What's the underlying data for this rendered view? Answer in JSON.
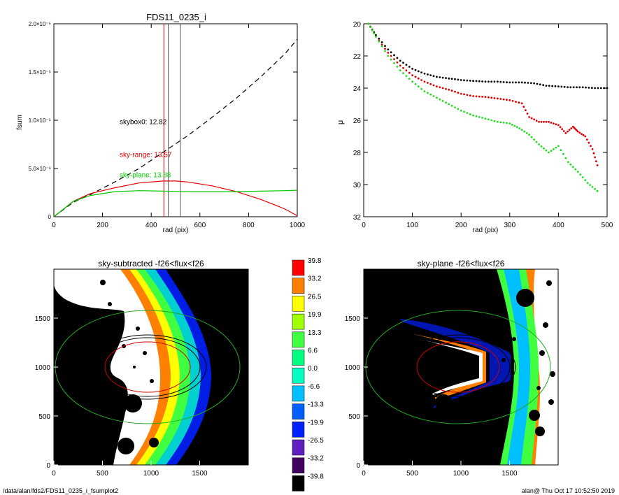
{
  "footer": {
    "left": "/data/alan/fds2/FDS11_0235_i_fsumplot2",
    "right": "alan@  Thu Oct 17 10:52:50 2019"
  },
  "chart_data": [
    {
      "type": "line",
      "title": "FDS11_0235_i",
      "xlabel": "rad (pix)",
      "ylabel": "fsum",
      "xlim": [
        0,
        1000
      ],
      "ylim": [
        0,
        2e-05
      ],
      "xticks": [
        "0",
        "200",
        "400",
        "600",
        "800",
        "1000"
      ],
      "yticks": [
        "0",
        "5.0×10⁻⁶",
        "1.0×10⁻⁵",
        "1.5×10⁻⁵",
        "2.0×10⁻⁵"
      ],
      "yticks_value": [
        0,
        5e-06,
        1e-05,
        1.5e-05,
        2e-05
      ],
      "series": [
        {
          "name": "skybox0",
          "color": "#000000",
          "dashed": true,
          "x": [
            0,
            80,
            150,
            250,
            350,
            450,
            550,
            650,
            750,
            850,
            950,
            1000
          ],
          "y": [
            0,
            1.5e-06,
            2.3e-06,
            3.6e-06,
            5e-06,
            6.7e-06,
            8.4e-06,
            1.03e-05,
            1.23e-05,
            1.45e-05,
            1.69e-05,
            1.84e-05
          ]
        },
        {
          "name": "sky-range",
          "color": "#e00000",
          "x": [
            0,
            40,
            80,
            150,
            250,
            350,
            450,
            500,
            550,
            650,
            750,
            850,
            950,
            1000
          ],
          "y": [
            0,
            8e-07,
            1.6e-06,
            2.4e-06,
            3e-06,
            3.5e-06,
            3.7e-06,
            3.7e-06,
            3.6e-06,
            3.2e-06,
            2.6e-06,
            1.8e-06,
            8e-07,
            1e-07
          ]
        },
        {
          "name": "sky-plane",
          "color": "#00c800",
          "x": [
            0,
            40,
            80,
            150,
            250,
            350,
            450,
            550,
            650,
            750,
            850,
            950,
            1000
          ],
          "y": [
            0,
            8e-07,
            1.6e-06,
            2.2e-06,
            2.6e-06,
            2.7e-06,
            2.65e-06,
            2.6e-06,
            2.6e-06,
            2.6e-06,
            2.65e-06,
            2.7e-06,
            2.75e-06
          ]
        }
      ],
      "vlines": [
        {
          "x": 452,
          "color": "#e00000"
        },
        {
          "x": 470,
          "color": "#555555"
        },
        {
          "x": 520,
          "color": "#555555"
        }
      ],
      "annotations": [
        {
          "text": "skybox0: 12.82",
          "color": "#000000",
          "x": 270,
          "y": 9.6e-06
        },
        {
          "text": "sky-range: 13.57",
          "color": "#e00000",
          "x": 270,
          "y": 6.2e-06
        },
        {
          "text": "sky-plane: 13.88",
          "color": "#00c800",
          "x": 270,
          "y": 4.1e-06
        }
      ]
    },
    {
      "type": "scatter",
      "title": "",
      "xlabel": "rad (pix)",
      "ylabel": "μ",
      "xlim": [
        0,
        500
      ],
      "ylim": [
        32,
        20
      ],
      "xticks": [
        "0",
        "100",
        "200",
        "300",
        "400",
        "500"
      ],
      "yticks": [
        "20",
        "22",
        "24",
        "26",
        "28",
        "30",
        "32"
      ],
      "series": [
        {
          "name": "",
          "color": "#000000",
          "x": [
            10,
            25,
            50,
            75,
            100,
            125,
            150,
            175,
            200,
            225,
            250,
            275,
            300,
            325,
            350,
            375,
            400,
            425,
            450,
            475,
            500
          ],
          "y": [
            20.0,
            20.7,
            21.6,
            22.3,
            22.8,
            23.1,
            23.3,
            23.4,
            23.5,
            23.55,
            23.6,
            23.6,
            23.65,
            23.65,
            23.7,
            23.85,
            23.9,
            23.95,
            23.95,
            24.0,
            24.0
          ]
        },
        {
          "name": "",
          "color": "#e00000",
          "x": [
            10,
            25,
            50,
            75,
            100,
            125,
            150,
            175,
            200,
            225,
            250,
            275,
            300,
            325,
            340,
            360,
            380,
            400,
            415,
            430,
            440,
            455,
            470,
            480
          ],
          "y": [
            20.0,
            20.8,
            21.8,
            22.6,
            23.2,
            23.6,
            23.9,
            24.1,
            24.35,
            24.5,
            24.55,
            24.65,
            24.75,
            24.95,
            25.8,
            26.1,
            26.1,
            26.3,
            26.8,
            26.4,
            26.7,
            27.0,
            27.8,
            28.8
          ]
        },
        {
          "name": "",
          "color": "#22dd22",
          "x": [
            10,
            25,
            50,
            75,
            100,
            125,
            150,
            175,
            200,
            225,
            250,
            275,
            300,
            320,
            340,
            360,
            380,
            400,
            420,
            440,
            460,
            480
          ],
          "y": [
            20.0,
            20.8,
            22.0,
            22.9,
            23.6,
            24.2,
            24.6,
            25.0,
            25.4,
            25.7,
            25.9,
            26.1,
            26.2,
            26.5,
            26.9,
            27.5,
            28.0,
            27.6,
            28.6,
            29.2,
            29.9,
            30.4
          ]
        }
      ]
    },
    {
      "type": "heatmap",
      "title": "sky-subtracted -f26<flux<f26",
      "xlim": [
        0,
        2000
      ],
      "ylim": [
        0,
        2000
      ],
      "xticks": [
        "0",
        "500",
        "1000",
        "1500"
      ],
      "yticks": [
        "0",
        "500",
        "1000",
        "1500"
      ]
    },
    {
      "type": "heatmap",
      "title": "sky-plane -f26<flux<f26",
      "xlim": [
        0,
        2000
      ],
      "ylim": [
        0,
        2000
      ],
      "xticks": [
        "0",
        "500",
        "1000",
        "1500"
      ],
      "yticks": [
        "0",
        "500",
        "1000",
        "1500"
      ]
    }
  ],
  "colorbar": {
    "labels": [
      "39.8",
      "33.2",
      "26.5",
      "19.9",
      "13.3",
      "6.6",
      "0.0",
      "-6.6",
      "-13.3",
      "-19.9",
      "-26.5",
      "-33.2",
      "-39.8"
    ],
    "colors": [
      "#ff0000",
      "#ff8000",
      "#ffff00",
      "#a0ff00",
      "#40ff40",
      "#00ff80",
      "#00ffc0",
      "#00c0ff",
      "#0060ff",
      "#0020ff",
      "#6020c0",
      "#400060",
      "#000000"
    ]
  }
}
